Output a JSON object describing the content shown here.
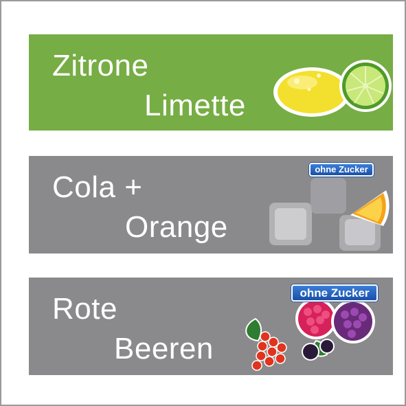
{
  "colors": {
    "frame_border": "#9a9a9a",
    "green_banner": "#76ad44",
    "gray_banner": "#8a8a8c",
    "text": "#ffffff",
    "badge_blue": "#2a62c0"
  },
  "banners": [
    {
      "line1": "Zitrone",
      "line2": "Limette",
      "color": "#76ad44",
      "art": "lemon-lime-image"
    },
    {
      "line1": "Cola +",
      "line2": "Orange",
      "color": "#8a8a8c",
      "art": "ice-cubes-orange-image",
      "badge": "ohne Zucker"
    },
    {
      "line1": "Rote",
      "line2": "Beeren",
      "color": "#8a8a8c",
      "art": "berries-image",
      "badge": "ohne Zucker"
    }
  ]
}
